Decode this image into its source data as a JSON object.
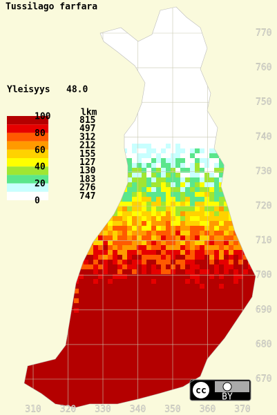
{
  "title": "Tussilago farfara",
  "frequency": {
    "label": "Yleisyys",
    "value": "48.0"
  },
  "legend": {
    "header": "lkm",
    "scale_labels": [
      100,
      80,
      60,
      40,
      20,
      0
    ],
    "colors": [
      "#b40000",
      "#e60000",
      "#ff5a00",
      "#ff9a00",
      "#ffd200",
      "#ffff00",
      "#a0e632",
      "#5ae68c",
      "#c8ffff",
      "#ffffff"
    ],
    "counts": [
      815,
      497,
      312,
      212,
      155,
      127,
      130,
      183,
      276,
      747
    ]
  },
  "x_ticks": [
    310,
    320,
    330,
    340,
    350,
    360,
    370
  ],
  "y_ticks": [
    670,
    680,
    690,
    700,
    710,
    720,
    730,
    740,
    750,
    760,
    770
  ],
  "license": "BY"
}
